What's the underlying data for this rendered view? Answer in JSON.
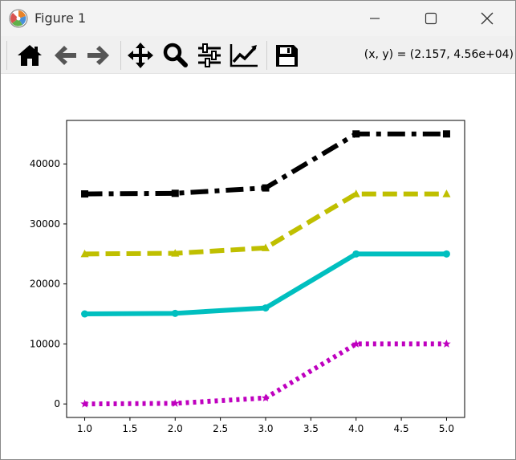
{
  "window": {
    "title": "Figure 1",
    "icons": {
      "app": "matplotlib-icon",
      "minimize": "minimize-icon",
      "maximize": "maximize-icon",
      "close": "close-icon"
    }
  },
  "toolbar": {
    "buttons": [
      {
        "name": "home-button",
        "icon": "home-icon"
      },
      {
        "name": "back-button",
        "icon": "arrow-left-icon"
      },
      {
        "name": "forward-button",
        "icon": "arrow-right-icon"
      },
      {
        "name": "pan-button",
        "icon": "move-icon"
      },
      {
        "name": "zoom-button",
        "icon": "magnifier-icon"
      },
      {
        "name": "configure-subplots-button",
        "icon": "sliders-icon"
      },
      {
        "name": "edit-axis-button",
        "icon": "line-chart-icon"
      },
      {
        "name": "save-button",
        "icon": "floppy-disk-icon"
      }
    ],
    "coords": "(x, y) = (2.157, 4.56e+04)"
  },
  "chart_data": {
    "type": "line",
    "title": "",
    "xlabel": "",
    "ylabel": "",
    "x": [
      1,
      2,
      3,
      4,
      5
    ],
    "xlim": [
      0.8,
      5.2
    ],
    "ylim": [
      -2250,
      47250
    ],
    "xticks": [
      1.0,
      1.5,
      2.0,
      2.5,
      3.0,
      3.5,
      4.0,
      4.5,
      5.0
    ],
    "xtick_labels": [
      "1.0",
      "1.5",
      "2.0",
      "2.5",
      "3.0",
      "3.5",
      "4.0",
      "4.5",
      "5.0"
    ],
    "yticks": [
      0,
      10000,
      20000,
      30000,
      40000
    ],
    "ytick_labels": [
      "0",
      "10000",
      "20000",
      "30000",
      "40000"
    ],
    "grid": false,
    "legend": "none",
    "series": [
      {
        "values": [
          0,
          100,
          1000,
          10000,
          10000
        ],
        "color": "#bf00bf",
        "linestyle": "dotted",
        "marker": "star"
      },
      {
        "values": [
          15000,
          15100,
          16000,
          25000,
          25000
        ],
        "color": "#00bfbf",
        "linestyle": "solid",
        "marker": "circle"
      },
      {
        "values": [
          25000,
          25100,
          26000,
          35000,
          35000
        ],
        "color": "#bfbf00",
        "linestyle": "dashed",
        "marker": "triangle"
      },
      {
        "values": [
          35000,
          35100,
          36000,
          45000,
          45000
        ],
        "color": "#000000",
        "linestyle": "dashdot",
        "marker": "square"
      }
    ]
  }
}
